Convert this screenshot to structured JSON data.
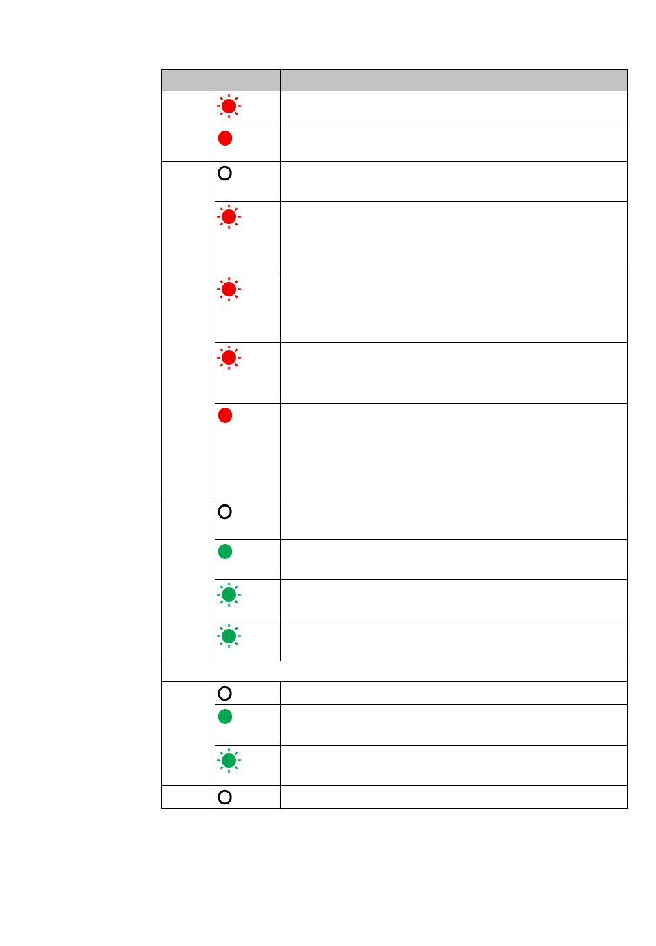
{
  "page": {
    "background_color": "#ffffff"
  },
  "table": {
    "header": {
      "led_columns_label": "",
      "description_label": "",
      "background": "#c3c3c3",
      "border_color": "#000000"
    },
    "led_colors": {
      "red": "#f20000",
      "green": "#00a651",
      "off_ring": "#000000"
    },
    "groups": [
      {
        "label": "",
        "rows": [
          {
            "led": "flash-red",
            "led_meaning": "red-flashing",
            "description": ""
          },
          {
            "led": "on-red",
            "led_meaning": "red-on",
            "description": ""
          }
        ]
      },
      {
        "label": "",
        "rows": [
          {
            "led": "off",
            "led_meaning": "off",
            "description": ""
          },
          {
            "led": "flash-red",
            "led_meaning": "red-flashing",
            "description": ""
          },
          {
            "led": "flash-red",
            "led_meaning": "red-flashing",
            "description": ""
          },
          {
            "led": "flash-red",
            "led_meaning": "red-flashing",
            "description": ""
          },
          {
            "led": "on-red",
            "led_meaning": "red-on",
            "description": ""
          }
        ]
      },
      {
        "label": "",
        "rows": [
          {
            "led": "off",
            "led_meaning": "off",
            "description": ""
          },
          {
            "led": "on-green",
            "led_meaning": "green-on",
            "description": ""
          },
          {
            "led": "flash-green",
            "led_meaning": "green-flashing",
            "description": ""
          },
          {
            "led": "flash-green",
            "led_meaning": "green-flashing",
            "description": ""
          }
        ]
      },
      {
        "label": "",
        "rows": [
          {
            "led": "off",
            "led_meaning": "off",
            "description": ""
          },
          {
            "led": "on-green",
            "led_meaning": "green-on",
            "description": ""
          },
          {
            "led": "flash-green",
            "led_meaning": "green-flashing",
            "description": ""
          }
        ]
      },
      {
        "label": "",
        "rows": [
          {
            "led": "off",
            "led_meaning": "off",
            "description": ""
          }
        ]
      }
    ],
    "separator": {
      "text": ""
    }
  }
}
